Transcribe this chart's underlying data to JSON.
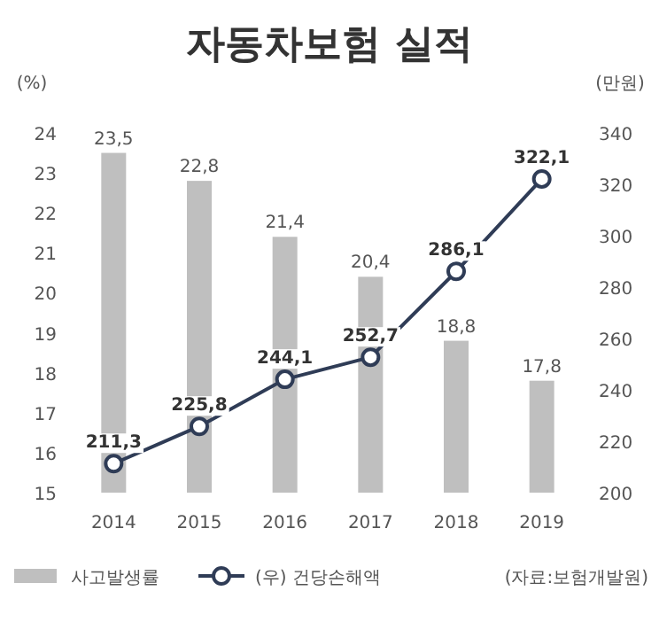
{
  "chart_data": {
    "type": "bar",
    "title": "자동차보험 실적",
    "ylabel": "(%)",
    "y2label": "(만원)",
    "categories": [
      "2014",
      "2015",
      "2016",
      "2017",
      "2018",
      "2019"
    ],
    "series": [
      {
        "name": "사고발생률",
        "color": "#bfbfbf",
        "values": [
          23.5,
          22.8,
          21.4,
          20.4,
          18.8,
          17.8
        ],
        "value_labels": [
          "23,5",
          "22,8",
          "21,4",
          "20,4",
          "18,8",
          "17,8"
        ]
      },
      {
        "name": "(우) 건당손해액",
        "type": "line",
        "axis": "y2",
        "color": "#2f3c56",
        "marker": "circle",
        "values": [
          211.3,
          225.8,
          244.1,
          252.7,
          286.1,
          322.1
        ],
        "value_labels": [
          "211,3",
          "225,8",
          "244,1",
          "252,7",
          "286,1",
          "322,1"
        ]
      }
    ],
    "ylim": [
      15,
      24
    ],
    "yticks": [
      15,
      16,
      17,
      18,
      19,
      20,
      21,
      22,
      23,
      24
    ],
    "y2lim": [
      200,
      340
    ],
    "y2ticks": [
      200,
      220,
      240,
      260,
      280,
      300,
      320,
      340
    ],
    "grid": false,
    "legend": "bottom",
    "annotations": [
      "(자료:보험개발원)"
    ]
  }
}
